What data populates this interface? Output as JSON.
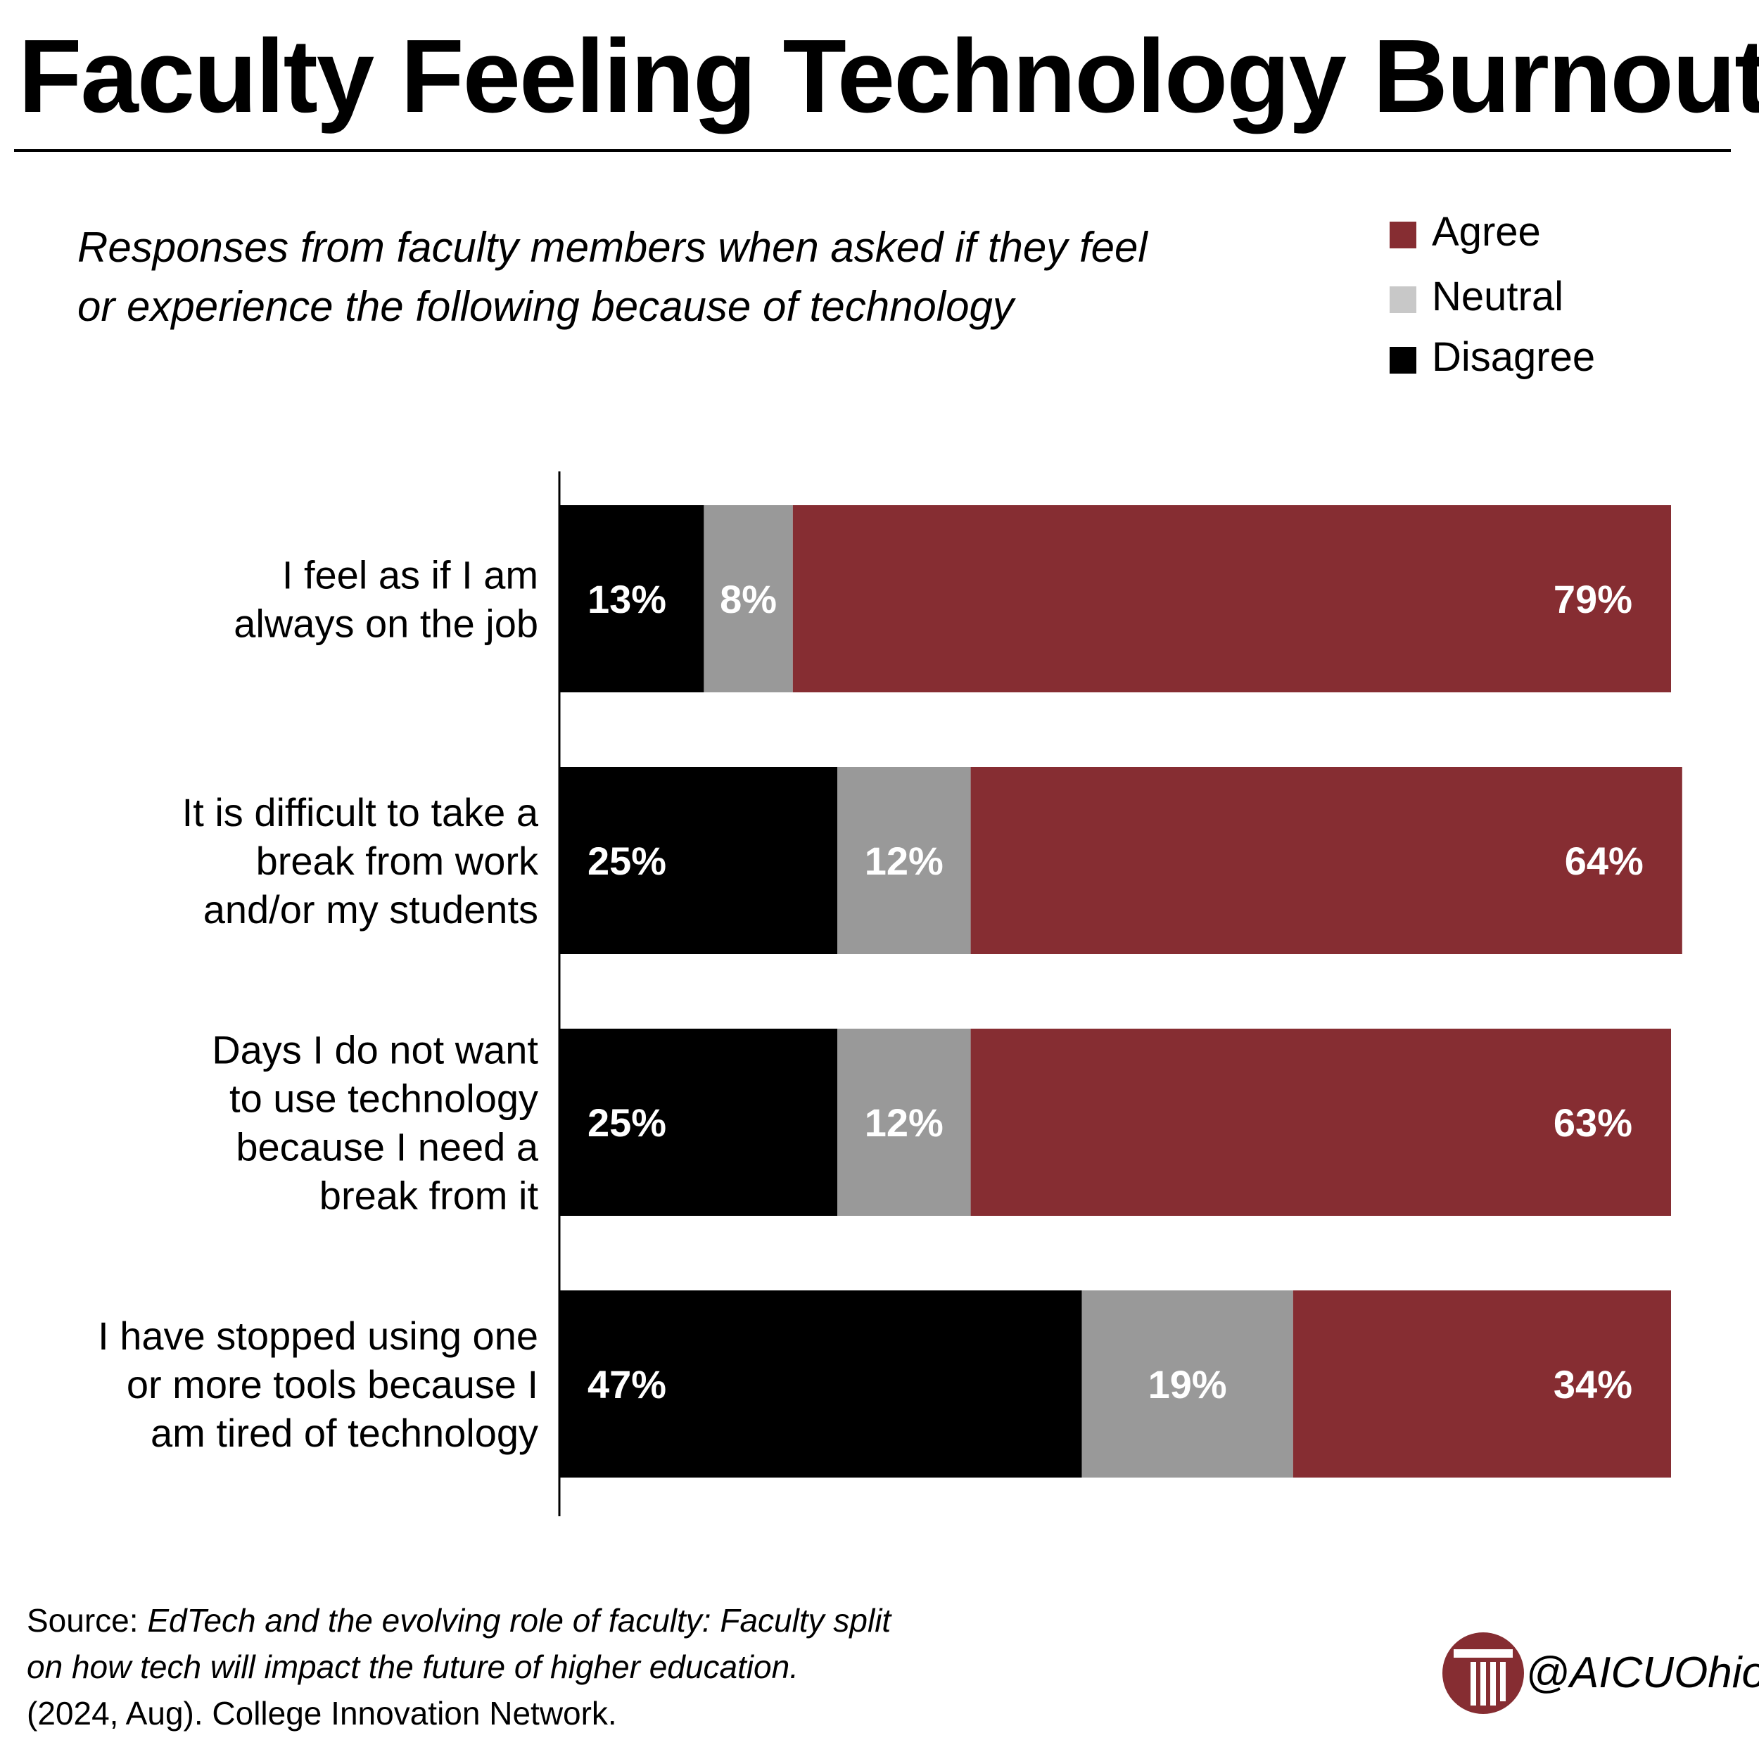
{
  "title": "Faculty Feeling Technology Burnout",
  "subtitle_lines": [
    "Responses from faculty members when asked if they feel",
    "or experience the following because of technology"
  ],
  "colors": {
    "Agree": "#862d32",
    "Neutral": "#999999",
    "Neutral_legend": "#c8c8c8",
    "Disagree": "#000000",
    "label_text": "#ffffff"
  },
  "legend": [
    "Agree",
    "Neutral",
    "Disagree"
  ],
  "chart_data": {
    "type": "bar",
    "orientation": "horizontal",
    "stacked": true,
    "categories": [
      [
        "I feel as if I am",
        "always on the job"
      ],
      [
        "It is difficult to take a",
        "break from work",
        "and/or my students"
      ],
      [
        "Days I do not want",
        "to use technology",
        "because I need a",
        "break from it"
      ],
      [
        "I have stopped using one",
        "or more tools because I",
        "am tired of technology"
      ]
    ],
    "series": [
      {
        "name": "Disagree",
        "values": [
          13,
          25,
          25,
          47
        ],
        "labels": [
          "13%",
          "25%",
          "25%",
          "47%"
        ]
      },
      {
        "name": "Neutral",
        "values": [
          8,
          12,
          12,
          19
        ],
        "labels": [
          "8%",
          "12%",
          "12%",
          "19%"
        ]
      },
      {
        "name": "Agree",
        "values": [
          79,
          64,
          63,
          34
        ],
        "labels": [
          "79%",
          "64%",
          "63%",
          "34%"
        ]
      }
    ],
    "xlim": [
      0,
      100
    ],
    "legend_position": "top-right",
    "grid": false
  },
  "source": {
    "prefix": "Source: ",
    "line1_italic": "EdTech and the evolving role of faculty: Faculty split",
    "line2_italic": "on how tech will impact the future of higher education.",
    "line3": "(2024, Aug). College Innovation Network."
  },
  "brand": {
    "handle": "@AICUOhio",
    "logo_icon": "aicu-column-logo-icon"
  }
}
